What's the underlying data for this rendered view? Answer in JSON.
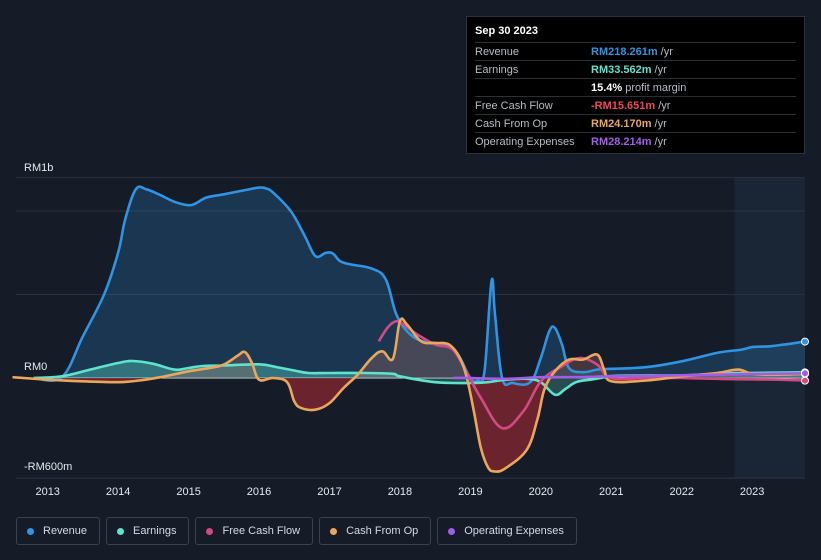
{
  "chart_data": {
    "type": "area",
    "y_unit_label": {
      "top": "RM1b",
      "zero": "RM0",
      "bottom": "-RM600m"
    },
    "ylim": [
      -600,
      1200
    ],
    "x_range": [
      2012.55,
      2023.75
    ],
    "x_ticks": [
      {
        "x": 2013,
        "label": "2013"
      },
      {
        "x": 2014,
        "label": "2014"
      },
      {
        "x": 2015,
        "label": "2015"
      },
      {
        "x": 2016,
        "label": "2016"
      },
      {
        "x": 2017,
        "label": "2017"
      },
      {
        "x": 2018,
        "label": "2018"
      },
      {
        "x": 2019,
        "label": "2019"
      },
      {
        "x": 2020,
        "label": "2020"
      },
      {
        "x": 2021,
        "label": "2021"
      },
      {
        "x": 2022,
        "label": "2022"
      },
      {
        "x": 2023,
        "label": "2023"
      }
    ],
    "gridlines": [
      1200,
      1000,
      500,
      0,
      -600
    ],
    "forecast_start": 2022.75,
    "series": [
      {
        "name": "Revenue",
        "color": "#2e94e3",
        "fill": true,
        "points": [
          [
            2012.8,
            0
          ],
          [
            2013.2,
            5
          ],
          [
            2013.5,
            250
          ],
          [
            2013.8,
            500
          ],
          [
            2014.0,
            750
          ],
          [
            2014.1,
            950
          ],
          [
            2014.25,
            1130
          ],
          [
            2014.4,
            1130
          ],
          [
            2014.6,
            1095
          ],
          [
            2014.8,
            1055
          ],
          [
            2015.0,
            1035
          ],
          [
            2015.1,
            1045
          ],
          [
            2015.25,
            1080
          ],
          [
            2015.5,
            1100
          ],
          [
            2015.8,
            1125
          ],
          [
            2016.0,
            1140
          ],
          [
            2016.1,
            1135
          ],
          [
            2016.2,
            1110
          ],
          [
            2016.45,
            1000
          ],
          [
            2016.65,
            850
          ],
          [
            2016.8,
            730
          ],
          [
            2016.95,
            750
          ],
          [
            2017.05,
            745
          ],
          [
            2017.15,
            700
          ],
          [
            2017.3,
            680
          ],
          [
            2017.6,
            655
          ],
          [
            2017.8,
            590
          ],
          [
            2017.95,
            380
          ],
          [
            2018.15,
            260
          ],
          [
            2018.4,
            210
          ],
          [
            2018.75,
            180
          ],
          [
            2019.0,
            0
          ],
          [
            2019.1,
            -15
          ],
          [
            2019.2,
            40
          ],
          [
            2019.3,
            580
          ],
          [
            2019.35,
            380
          ],
          [
            2019.45,
            0
          ],
          [
            2019.6,
            -30
          ],
          [
            2019.85,
            -25
          ],
          [
            2020.0,
            120
          ],
          [
            2020.12,
            280
          ],
          [
            2020.2,
            300
          ],
          [
            2020.3,
            200
          ],
          [
            2020.4,
            60
          ],
          [
            2020.6,
            35
          ],
          [
            2020.8,
            50
          ],
          [
            2021.0,
            55
          ],
          [
            2021.5,
            65
          ],
          [
            2022.0,
            100
          ],
          [
            2022.5,
            150
          ],
          [
            2022.85,
            170
          ],
          [
            2023.0,
            185
          ],
          [
            2023.25,
            190
          ],
          [
            2023.45,
            200
          ],
          [
            2023.75,
            218
          ]
        ]
      },
      {
        "name": "Earnings",
        "color": "#5ee3cd",
        "fill": true,
        "points": [
          [
            2012.8,
            0
          ],
          [
            2013.2,
            10
          ],
          [
            2013.6,
            50
          ],
          [
            2014.0,
            90
          ],
          [
            2014.2,
            102
          ],
          [
            2014.5,
            85
          ],
          [
            2014.8,
            50
          ],
          [
            2015.0,
            60
          ],
          [
            2015.2,
            72
          ],
          [
            2015.5,
            75
          ],
          [
            2016.0,
            82
          ],
          [
            2016.25,
            65
          ],
          [
            2016.5,
            45
          ],
          [
            2016.7,
            30
          ],
          [
            2017.0,
            30
          ],
          [
            2017.5,
            30
          ],
          [
            2017.9,
            25
          ],
          [
            2018.0,
            10
          ],
          [
            2018.5,
            -25
          ],
          [
            2019.0,
            -30
          ],
          [
            2019.25,
            -25
          ],
          [
            2019.5,
            -10
          ],
          [
            2019.8,
            -5
          ],
          [
            2020.0,
            -25
          ],
          [
            2020.2,
            -100
          ],
          [
            2020.35,
            -65
          ],
          [
            2020.5,
            -25
          ],
          [
            2020.7,
            -10
          ],
          [
            2020.85,
            0
          ],
          [
            2021.0,
            12
          ],
          [
            2021.5,
            15
          ],
          [
            2022.0,
            15
          ],
          [
            2022.5,
            25
          ],
          [
            2022.9,
            30
          ],
          [
            2023.25,
            32
          ],
          [
            2023.75,
            34
          ]
        ]
      },
      {
        "name": "Free Cash Flow",
        "color": "#d14a86",
        "fill": false,
        "points": [
          [
            2017.7,
            220
          ],
          [
            2017.83,
            305
          ],
          [
            2017.95,
            340
          ],
          [
            2018.05,
            320
          ],
          [
            2018.25,
            260
          ],
          [
            2018.5,
            200
          ],
          [
            2018.75,
            170
          ],
          [
            2018.95,
            30
          ],
          [
            2019.15,
            -120
          ],
          [
            2019.45,
            -300
          ],
          [
            2019.75,
            -200
          ],
          [
            2020.0,
            -20
          ],
          [
            2020.3,
            70
          ],
          [
            2020.55,
            120
          ],
          [
            2020.8,
            80
          ],
          [
            2021.0,
            0
          ],
          [
            2021.5,
            0
          ],
          [
            2022.0,
            0
          ],
          [
            2022.5,
            -5
          ],
          [
            2023.0,
            -8
          ],
          [
            2023.4,
            -10
          ],
          [
            2023.75,
            -15.651
          ]
        ]
      },
      {
        "name": "Cash From Op",
        "color": "#eaa75c",
        "fill": true,
        "points": [
          [
            2012.5,
            5
          ],
          [
            2013.0,
            -10
          ],
          [
            2013.5,
            -20
          ],
          [
            2014.0,
            -25
          ],
          [
            2014.3,
            -15
          ],
          [
            2014.6,
            5
          ],
          [
            2015.0,
            40
          ],
          [
            2015.3,
            60
          ],
          [
            2015.5,
            80
          ],
          [
            2015.7,
            135
          ],
          [
            2015.8,
            155
          ],
          [
            2015.9,
            90
          ],
          [
            2016.0,
            -10
          ],
          [
            2016.2,
            0
          ],
          [
            2016.4,
            -25
          ],
          [
            2016.5,
            -140
          ],
          [
            2016.6,
            -180
          ],
          [
            2016.8,
            -190
          ],
          [
            2017.0,
            -150
          ],
          [
            2017.2,
            -60
          ],
          [
            2017.4,
            20
          ],
          [
            2017.6,
            120
          ],
          [
            2017.75,
            160
          ],
          [
            2017.9,
            115
          ],
          [
            2018.0,
            340
          ],
          [
            2018.1,
            320
          ],
          [
            2018.3,
            220
          ],
          [
            2018.5,
            210
          ],
          [
            2018.7,
            200
          ],
          [
            2018.85,
            120
          ],
          [
            2018.95,
            0
          ],
          [
            2019.05,
            -200
          ],
          [
            2019.15,
            -420
          ],
          [
            2019.25,
            -535
          ],
          [
            2019.35,
            -560
          ],
          [
            2019.5,
            -540
          ],
          [
            2019.8,
            -430
          ],
          [
            2019.95,
            -250
          ],
          [
            2020.05,
            -70
          ],
          [
            2020.2,
            40
          ],
          [
            2020.4,
            110
          ],
          [
            2020.6,
            110
          ],
          [
            2020.8,
            140
          ],
          [
            2020.9,
            50
          ],
          [
            2021.0,
            -20
          ],
          [
            2021.5,
            -15
          ],
          [
            2022.0,
            10
          ],
          [
            2022.5,
            30
          ],
          [
            2022.8,
            50
          ],
          [
            2023.0,
            25
          ],
          [
            2023.3,
            20
          ],
          [
            2023.75,
            24.17
          ]
        ]
      },
      {
        "name": "Operating Expenses",
        "color": "#a25de8",
        "fill": false,
        "points": [
          [
            2018.75,
            0
          ],
          [
            2019.0,
            0
          ],
          [
            2019.5,
            -5
          ],
          [
            2020.0,
            5
          ],
          [
            2020.5,
            5
          ],
          [
            2021.0,
            10
          ],
          [
            2021.5,
            12
          ],
          [
            2022.0,
            16
          ],
          [
            2022.5,
            20
          ],
          [
            2023.0,
            24
          ],
          [
            2023.4,
            26
          ],
          [
            2023.75,
            28.214
          ]
        ]
      }
    ]
  },
  "tooltip": {
    "date": "Sep 30 2023",
    "rows": [
      {
        "label": "Revenue",
        "value": "RM218.261m",
        "unit": "/yr",
        "color": "#2e94e3"
      },
      {
        "label": "Earnings",
        "value": "RM33.562m",
        "unit": "/yr",
        "color": "#5ee3cd"
      },
      {
        "label": "",
        "value": "15.4%",
        "unit": "profit margin",
        "color": "#ffffff"
      },
      {
        "label": "Free Cash Flow",
        "value": "-RM15.651m",
        "unit": "/yr",
        "color": "#ee4a5b"
      },
      {
        "label": "Cash From Op",
        "value": "RM24.170m",
        "unit": "/yr",
        "color": "#eaa75c"
      },
      {
        "label": "Operating Expenses",
        "value": "RM28.214m",
        "unit": "/yr",
        "color": "#a25de8"
      }
    ]
  },
  "legend": [
    {
      "label": "Revenue",
      "color": "#2e94e3"
    },
    {
      "label": "Earnings",
      "color": "#5ee3cd"
    },
    {
      "label": "Free Cash Flow",
      "color": "#d14a86"
    },
    {
      "label": "Cash From Op",
      "color": "#eaa75c"
    },
    {
      "label": "Operating Expenses",
      "color": "#a25de8"
    }
  ]
}
